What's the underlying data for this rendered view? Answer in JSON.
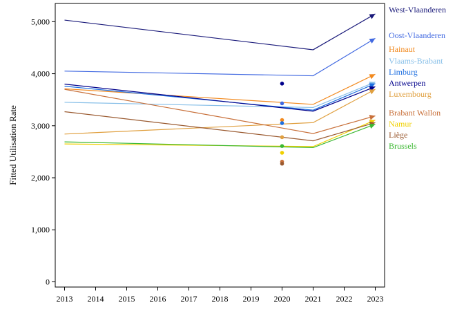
{
  "chart_data": {
    "type": "line",
    "title": "",
    "xlabel": "",
    "ylabel": "Fitted Utilisation Rate",
    "x": [
      2013,
      2021,
      2023
    ],
    "xticks": [
      "2013",
      "2014",
      "2015",
      "2016",
      "2017",
      "2018",
      "2019",
      "2020",
      "2021",
      "2022",
      "2023"
    ],
    "yticks": [
      0,
      1000,
      2000,
      3000,
      4000,
      5000
    ],
    "ytick_labels": [
      "0",
      "1,000",
      "2,000",
      "3,000",
      "4,000",
      "5,000"
    ],
    "xlim": [
      2012.7,
      2023.3
    ],
    "ylim": [
      -100,
      5350
    ],
    "grid": false,
    "legend": "right, labels at line ends",
    "observed_x": 2020,
    "series": [
      {
        "name": "West-Vlaanderen",
        "color": "#1a1a7a",
        "values": [
          5030,
          4460,
          5150
        ],
        "observed": null
      },
      {
        "name": "Oost-Vlaanderen",
        "color": "#4169e1",
        "values": [
          4050,
          3960,
          4680
        ],
        "observed": null
      },
      {
        "name": "Hainaut",
        "color": "#f28a1f",
        "values": [
          3710,
          3410,
          3990
        ],
        "observed": 3110
      },
      {
        "name": "Vlaams-Brabant",
        "color": "#87bfe8",
        "values": [
          3450,
          3350,
          3840
        ],
        "observed": null
      },
      {
        "name": "Limburg",
        "color": "#1e6fe0",
        "values": [
          3760,
          3300,
          3810
        ],
        "observed": 3050
      },
      {
        "name": "Antwerpen",
        "color": "#00008b",
        "values": [
          3800,
          3280,
          3750
        ],
        "observed": 3810
      },
      {
        "name": "Luxembourg",
        "color": "#e0a040",
        "values": [
          2840,
          3060,
          3700
        ],
        "observed": 2780
      },
      {
        "name": "Brabant Wallon",
        "color": "#c8703a",
        "values": [
          3700,
          2850,
          3190
        ],
        "observed": 2310
      },
      {
        "name": "Namur",
        "color": "#f0d000",
        "values": [
          2650,
          2600,
          3110
        ],
        "observed": 2480
      },
      {
        "name": "Liège",
        "color": "#9a5a30",
        "values": [
          3270,
          2710,
          3060
        ],
        "observed": 2270
      },
      {
        "name": "Brussels",
        "color": "#3cb832",
        "values": [
          2690,
          2580,
          3030
        ],
        "observed": 2610
      }
    ],
    "extra_points": [
      {
        "x": 2020,
        "y": 3430,
        "color": "#4169e1"
      }
    ]
  }
}
